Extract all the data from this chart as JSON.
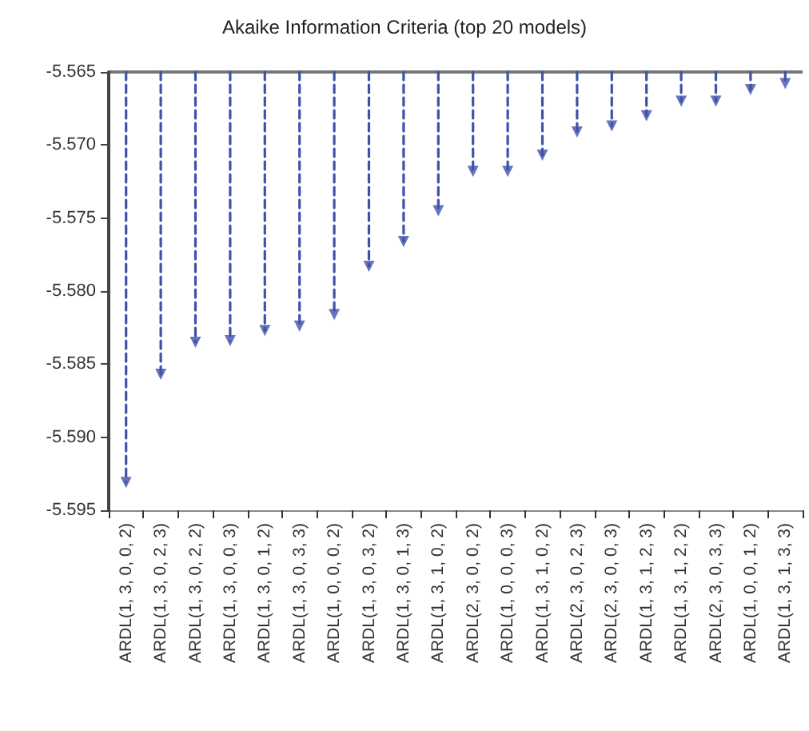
{
  "chart_data": {
    "type": "lollipop",
    "title": "Akaike Information Criteria (top 20 models)",
    "categories": [
      "ARDL(1, 3, 0, 0, 2)",
      "ARDL(1, 3, 0, 2, 3)",
      "ARDL(1, 3, 0, 2, 2)",
      "ARDL(1, 3, 0, 0, 3)",
      "ARDL(1, 3, 0, 1, 2)",
      "ARDL(1, 3, 0, 3, 3)",
      "ARDL(1, 0, 0, 0, 2)",
      "ARDL(1, 3, 0, 3, 2)",
      "ARDL(1, 3, 0, 1, 3)",
      "ARDL(1, 3, 1, 0, 2)",
      "ARDL(2, 3, 0, 0, 2)",
      "ARDL(1, 0, 0, 0, 3)",
      "ARDL(1, 3, 1, 0, 2)",
      "ARDL(2, 3, 0, 2, 3)",
      "ARDL(2, 3, 0, 0, 3)",
      "ARDL(1, 3, 1, 2, 3)",
      "ARDL(1, 3, 1, 2, 2)",
      "ARDL(2, 3, 0, 3, 3)",
      "ARDL(1, 0, 0, 1, 2)",
      "ARDL(1, 3, 1, 3, 3)"
    ],
    "values": [
      -5.5931,
      -5.5857,
      -5.5835,
      -5.5834,
      -5.5827,
      -5.5824,
      -5.5816,
      -5.5783,
      -5.5766,
      -5.5745,
      -5.5718,
      -5.5718,
      -5.5707,
      -5.5691,
      -5.5687,
      -5.568,
      -5.567,
      -5.567,
      -5.5662,
      -5.5658
    ],
    "color": "#3f51aa",
    "ylim": [
      -5.595,
      -5.565
    ],
    "yticks": [
      -5.595,
      {
        "value": -5.59,
        "label": "-5.590"
      },
      -5.585,
      {
        "value": -5.58,
        "label": "-5.580"
      },
      -5.575,
      {
        "value": -5.57,
        "label": "-5.570"
      },
      -5.565
    ],
    "grid": false,
    "marker": "triangle",
    "line_style": "dashed"
  }
}
